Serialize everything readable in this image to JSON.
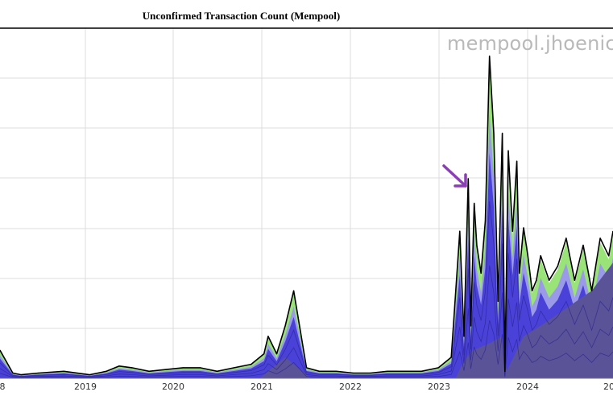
{
  "chart_data": {
    "type": "area",
    "title": "Unconfirmed Transaction Count (Mempool)",
    "watermark": "mempool.jhoenicke",
    "x_tick_labels": [
      "8",
      "2019",
      "2020",
      "2021",
      "2022",
      "2023",
      "2024",
      "20"
    ],
    "legend": "none",
    "grid": true,
    "series_colors": {
      "outline": "#000000",
      "band_dark": "#5a5397",
      "band_blue": "#4a42d8",
      "band_light_blue": "#9a96ee",
      "band_green": "#8ee06a",
      "arrow": "#8b3fb5"
    },
    "series": [
      {
        "x": [
          2017.85,
          2018.0,
          2018.1,
          2018.3,
          2018.6,
          2018.9,
          2019.1,
          2019.25,
          2019.4,
          2019.6,
          2019.8,
          2020.0,
          2020.2,
          2020.4,
          2020.6,
          2020.8,
          2020.95,
          2021.0,
          2021.1,
          2021.2,
          2021.3,
          2021.45,
          2021.6,
          2021.8,
          2022.0,
          2022.2,
          2022.4,
          2022.6,
          2022.8,
          2023.0,
          2023.15,
          2023.25,
          2023.3,
          2023.35,
          2023.38,
          2023.42,
          2023.45,
          2023.5,
          2023.55,
          2023.6,
          2023.65,
          2023.7,
          2023.75,
          2023.78,
          2023.82,
          2023.87,
          2023.92,
          2023.95,
          2024.0,
          2024.05,
          2024.1,
          2024.15,
          2024.2,
          2024.3,
          2024.4,
          2024.5,
          2024.6,
          2024.7,
          2024.8,
          2024.9,
          2025.0,
          2025.05
        ],
        "values": [
          0.08,
          0.015,
          0.01,
          0.015,
          0.02,
          0.01,
          0.02,
          0.035,
          0.03,
          0.02,
          0.025,
          0.03,
          0.03,
          0.02,
          0.03,
          0.04,
          0.07,
          0.12,
          0.07,
          0.15,
          0.25,
          0.03,
          0.02,
          0.02,
          0.015,
          0.015,
          0.02,
          0.02,
          0.02,
          0.03,
          0.06,
          0.42,
          0.12,
          0.57,
          0.15,
          0.5,
          0.38,
          0.3,
          0.45,
          0.92,
          0.7,
          0.22,
          0.7,
          0.02,
          0.65,
          0.42,
          0.62,
          0.3,
          0.43,
          0.35,
          0.25,
          0.28,
          0.35,
          0.28,
          0.32,
          0.4,
          0.28,
          0.38,
          0.25,
          0.4,
          0.35,
          0.42
        ]
      },
      {
        "x": [
          2017.85,
          2018.0,
          2020.9,
          2021.0,
          2021.2,
          2021.4,
          2021.5,
          2023.2,
          2023.3,
          2023.4,
          2023.6,
          2023.75,
          2023.8,
          2024.0,
          2024.2,
          2024.5,
          2024.8,
          2025.05
        ],
        "values": [
          0.0,
          0.0,
          0.0,
          0.02,
          0.06,
          0.02,
          0.0,
          0.0,
          0.05,
          0.08,
          0.1,
          0.12,
          0.02,
          0.12,
          0.15,
          0.2,
          0.25,
          0.33
        ]
      }
    ]
  }
}
